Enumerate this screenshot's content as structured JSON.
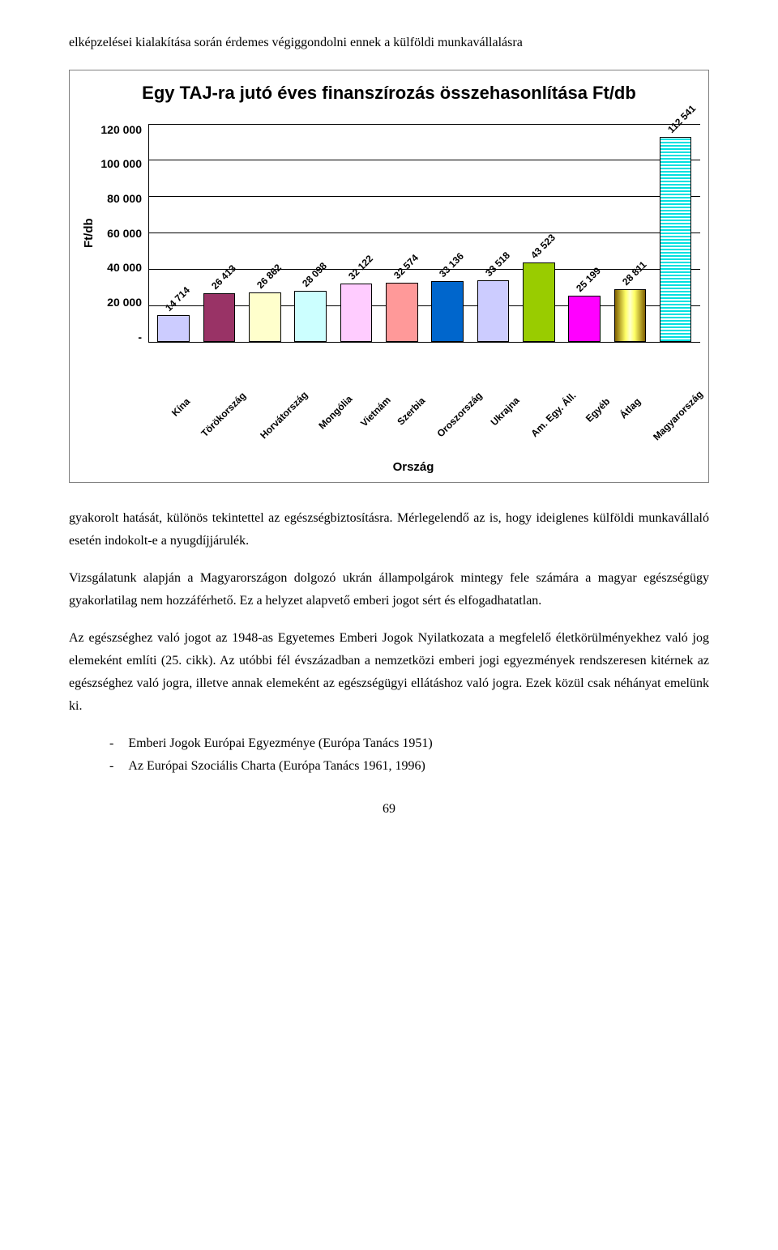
{
  "intro_text": "elképzelései kialakítása során érdemes végiggondolni ennek a külföldi munkavállalásra",
  "chart": {
    "type": "bar",
    "title": "Egy TAJ-ra jutó éves finanszírozás összehasonlítása Ft/db",
    "ylabel": "Ft/db",
    "xlabel": "Ország",
    "ylim_max": 120000,
    "ytick_step": 20000,
    "yticks": [
      "120 000",
      "100 000",
      "80 000",
      "60 000",
      "40 000",
      "20 000",
      "-"
    ],
    "categories": [
      "Kína",
      "Törökország",
      "Horvátország",
      "Mongólia",
      "Vietnám",
      "Szerbia",
      "Oroszország",
      "Ukrajna",
      "Am. Egy. Áll.",
      "Egyéb",
      "Átlag",
      "Magyarország"
    ],
    "values": [
      14714,
      26413,
      26862,
      28098,
      32122,
      32574,
      33136,
      33518,
      43523,
      25199,
      28811,
      112541
    ],
    "value_labels": [
      "14 714",
      "26 413",
      "26 862",
      "28 098",
      "32 122",
      "32 574",
      "33 136",
      "33 518",
      "43 523",
      "25 199",
      "28 811",
      "112 541"
    ],
    "bar_colors": [
      "#ccccff",
      "#993366",
      "#ffffcc",
      "#ccffff",
      "#ffccff",
      "#ff9999",
      "#0066cc",
      "#ccccff",
      "#99cc00",
      "#ff00ff",
      "gradient",
      "stripes"
    ],
    "grid_color": "#000000",
    "background_color": "#ffffff"
  },
  "para1": "gyakorolt hatását, különös tekintettel az egészségbiztosításra. Mérlegelendő az is, hogy ideiglenes külföldi munkavállaló esetén indokolt-e a nyugdíjjárulék.",
  "para2": "Vizsgálatunk alapján a Magyarországon dolgozó ukrán állampolgárok mintegy fele számára a magyar egészségügy gyakorlatilag nem hozzáférhető. Ez a helyzet alapvető emberi jogot sért és elfogadhatatlan.",
  "para3": "Az egészséghez való jogot az 1948-as Egyetemes Emberi Jogok Nyilatkozata a megfelelő életkörülményekhez való jog elemeként említi (25. cikk). Az utóbbi fél évszázadban a nemzetközi emberi jogi egyezmények rendszeresen kitérnek az egészséghez való jogra, illetve annak elemeként az egészségügyi ellátáshoz való jogra. Ezek közül csak néhányat emelünk ki.",
  "list_items": [
    "Emberi Jogok Európai Egyezménye (Európa Tanács 1951)",
    "Az Európai Szociális Charta (Európa Tanács 1961, 1996)"
  ],
  "page_number": "69"
}
